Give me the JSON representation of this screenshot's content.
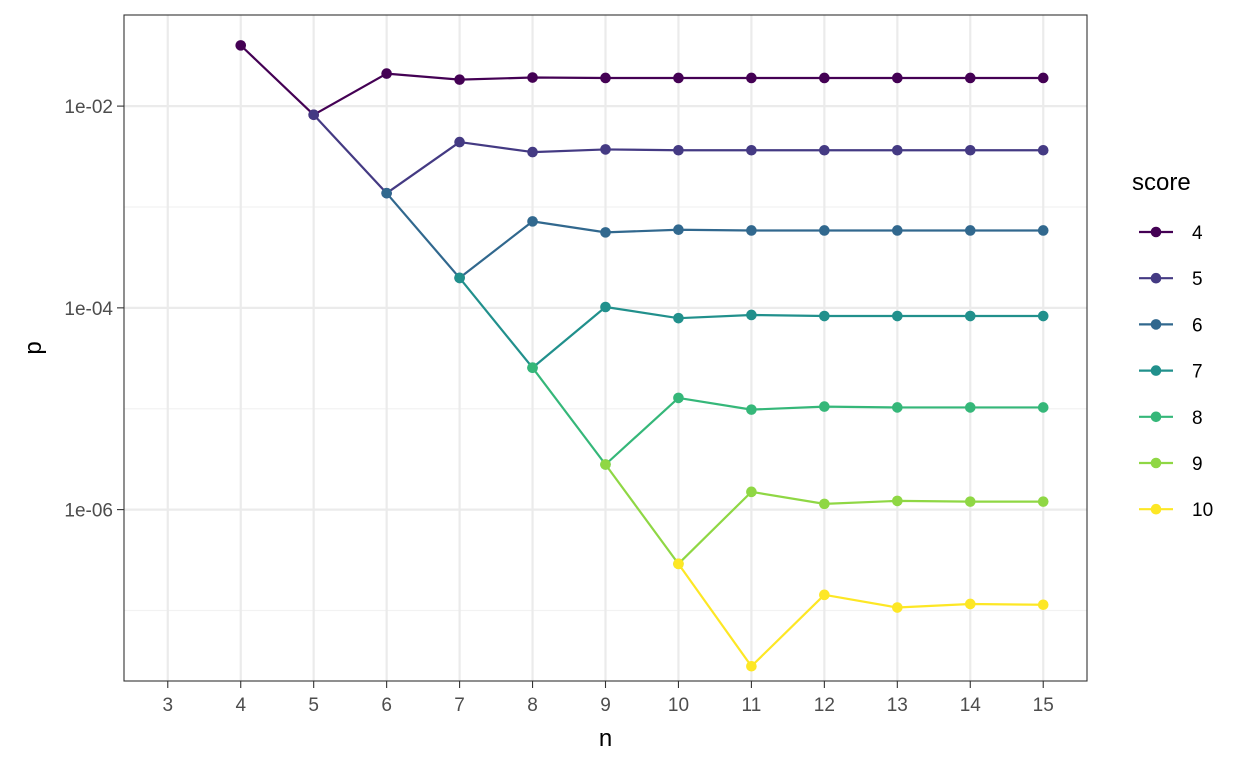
{
  "chart_data": {
    "type": "line",
    "title": "",
    "xlabel": "n",
    "ylabel": "p",
    "x_ticks": [
      "3",
      "4",
      "5",
      "6",
      "7",
      "8",
      "9",
      "10",
      "11",
      "12",
      "13",
      "14",
      "15"
    ],
    "y_scale": "log10",
    "y_ticks": [
      {
        "value": 1e-06,
        "label": "1e-06"
      },
      {
        "value": 0.0001,
        "label": "1e-04"
      },
      {
        "value": 0.01,
        "label": "1e-02"
      }
    ],
    "ylim": [
      2e-08,
      0.08
    ],
    "xlim": [
      2.4,
      15.6
    ],
    "grid": true,
    "legend": {
      "title": "score",
      "placement": "right"
    },
    "series": [
      {
        "name": "4",
        "color": "#440154",
        "x": [
          4,
          5,
          6,
          7,
          8,
          9,
          10,
          11,
          12,
          13,
          14,
          15
        ],
        "y": [
          0.04,
          0.0082,
          0.021,
          0.0183,
          0.0192,
          0.019,
          0.019,
          0.019,
          0.019,
          0.019,
          0.019,
          0.019
        ]
      },
      {
        "name": "5",
        "color": "#443A83",
        "x": [
          5,
          6,
          7,
          8,
          9,
          10,
          11,
          12,
          13,
          14,
          15
        ],
        "y": [
          0.0082,
          0.00137,
          0.0044,
          0.0035,
          0.00372,
          0.00365,
          0.00365,
          0.00365,
          0.00365,
          0.00365,
          0.00365
        ]
      },
      {
        "name": "6",
        "color": "#31688E",
        "x": [
          6,
          7,
          8,
          9,
          10,
          11,
          12,
          13,
          14,
          15
        ],
        "y": [
          0.00137,
          0.000198,
          0.00072,
          0.00056,
          0.000595,
          0.000585,
          0.000585,
          0.000585,
          0.000585,
          0.000585
        ]
      },
      {
        "name": "7",
        "color": "#21908C",
        "x": [
          7,
          8,
          9,
          10,
          11,
          12,
          13,
          14,
          15
        ],
        "y": [
          0.000198,
          2.55e-05,
          0.000102,
          7.9e-05,
          8.5e-05,
          8.3e-05,
          8.3e-05,
          8.3e-05,
          8.3e-05
        ]
      },
      {
        "name": "8",
        "color": "#35B779",
        "x": [
          8,
          9,
          10,
          11,
          12,
          13,
          14,
          15
        ],
        "y": [
          2.55e-05,
          2.8e-06,
          1.28e-05,
          9.8e-06,
          1.05e-05,
          1.03e-05,
          1.03e-05,
          1.03e-05
        ]
      },
      {
        "name": "9",
        "color": "#8FD744",
        "x": [
          9,
          10,
          11,
          12,
          13,
          14,
          15
        ],
        "y": [
          2.8e-06,
          2.9e-07,
          1.5e-06,
          1.14e-06,
          1.22e-06,
          1.2e-06,
          1.2e-06
        ]
      },
      {
        "name": "10",
        "color": "#FDE725",
        "x": [
          10,
          11,
          12,
          13,
          14,
          15
        ],
        "y": [
          2.9e-07,
          2.8e-08,
          1.43e-07,
          1.07e-07,
          1.16e-07,
          1.14e-07
        ]
      }
    ]
  }
}
